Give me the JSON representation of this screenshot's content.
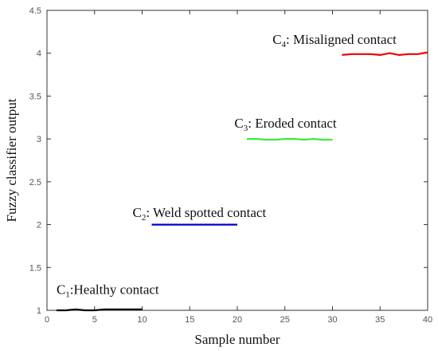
{
  "chart_data": {
    "type": "line",
    "xlabel": "Sample number",
    "ylabel": "Fuzzy classifier output",
    "xlim": [
      0,
      40
    ],
    "ylim": [
      1,
      4.5
    ],
    "xticks": [
      0,
      5,
      10,
      15,
      20,
      25,
      30,
      35,
      40
    ],
    "yticks": [
      1,
      1.5,
      2,
      2.5,
      3,
      3.5,
      4,
      4.5
    ],
    "xtick_labels": [
      "0",
      "5",
      "10",
      "15",
      "20",
      "25",
      "30",
      "35",
      "40"
    ],
    "ytick_labels": [
      "1",
      "1.5",
      "2",
      "2.5",
      "3",
      "3.5",
      "4",
      "4.5"
    ],
    "grid": false,
    "series": [
      {
        "color": "#000000",
        "x": [
          1,
          2,
          3,
          4,
          5,
          6,
          7,
          8,
          9,
          10
        ],
        "y": [
          1.0,
          1.0,
          1.01,
          1.0,
          1.0,
          1.01,
          1.01,
          1.01,
          1.01,
          1.01
        ]
      },
      {
        "color": "#0000cc",
        "x": [
          11,
          12,
          13,
          14,
          15,
          16,
          17,
          18,
          19,
          20
        ],
        "y": [
          2.0,
          2.0,
          2.0,
          2.0,
          2.0,
          2.0,
          2.0,
          2.0,
          2.0,
          2.0
        ]
      },
      {
        "color": "#33ee33",
        "x": [
          21,
          22,
          23,
          24,
          25,
          26,
          27,
          28,
          29,
          30
        ],
        "y": [
          3.0,
          3.0,
          2.99,
          2.99,
          3.0,
          3.0,
          2.99,
          3.0,
          2.99,
          2.99
        ]
      },
      {
        "color": "#ee0000",
        "x": [
          31,
          32,
          33,
          34,
          35,
          36,
          37,
          38,
          39,
          40
        ],
        "y": [
          3.98,
          3.99,
          3.99,
          3.99,
          3.98,
          4.0,
          3.98,
          3.99,
          3.99,
          4.01
        ]
      }
    ],
    "annotations": [
      {
        "main": "C",
        "sub": "1",
        "text": ":Healthy contact",
        "x": 1.0,
        "y": 1.19
      },
      {
        "main": "C",
        "sub": "2",
        "text": ": Weld spotted contact",
        "x": 9.0,
        "y": 2.09
      },
      {
        "main": "C",
        "sub": "3",
        "text": ": Eroded contact",
        "x": 19.7,
        "y": 3.13
      },
      {
        "main": "C",
        "sub": "4",
        "text": ": Misaligned contact",
        "x": 23.7,
        "y": 4.11
      }
    ]
  }
}
